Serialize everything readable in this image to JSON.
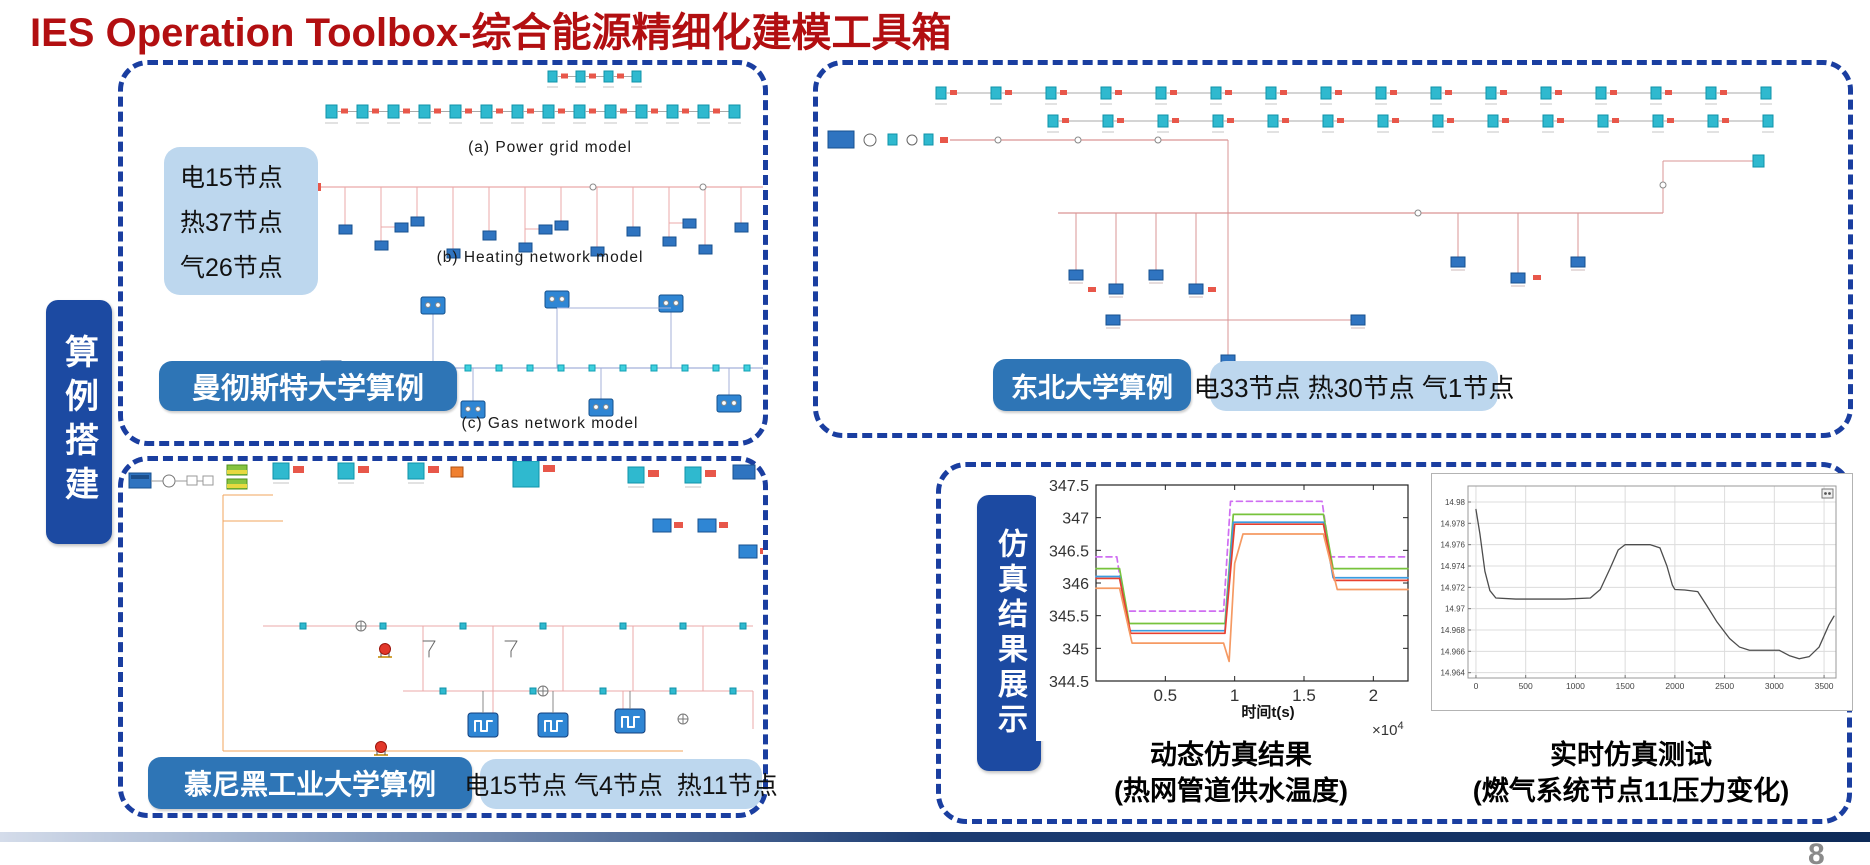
{
  "slide": {
    "title": "IES Operation Toolbox-综合能源精细化建模工具箱",
    "page_number": "8"
  },
  "left_ribbon": {
    "label": "算例搭建"
  },
  "manchester": {
    "nodes": [
      "电15节点",
      "热37节点",
      "气26节点"
    ],
    "captions": {
      "a": "(a) Power grid model",
      "b": "(b) Heating network model",
      "c": "(c) Gas network model"
    },
    "label": "曼彻斯特大学算例"
  },
  "northeastern": {
    "label": "东北大学算例",
    "nodes": "电33节点 热30节点 气1节点"
  },
  "munich": {
    "label": "慕尼黑工业大学算例",
    "nodes": "电15节点 气4节点  热11节点"
  },
  "results": {
    "ribbon": "仿真结果展示",
    "dynamic": {
      "title": "动态仿真结果",
      "subtitle": "(热网管道供水温度)"
    },
    "realtime": {
      "title": "实时仿真测试",
      "subtitle": "(燃气系统节点11压力变化)"
    }
  },
  "colors": {
    "title_red": "#B20F11",
    "dash_blue": "#1A3EA0",
    "ribbon_blue": "#1C4AA2",
    "label_blue": "#2E75B6",
    "light_blue": "#BDD7EE"
  },
  "chart_data": [
    {
      "type": "line",
      "title": "动态仿真结果 (热网管道供水温度)",
      "xlabel": "时间t(s)",
      "x_mult_base": "×10",
      "x_mult_exp": "4",
      "xlim": [
        0,
        2.25
      ],
      "ylim": [
        344.5,
        347.5
      ],
      "xticks": [
        0.5,
        1,
        1.5,
        2
      ],
      "xtick_labels": [
        "0.5",
        "1",
        "1.5",
        "2"
      ],
      "yticks": [
        344.5,
        345,
        345.5,
        346,
        346.5,
        347,
        347.5
      ],
      "ytick_labels": [
        "344.5",
        "345",
        "345.5",
        "346",
        "346.5",
        "347",
        "347.5"
      ],
      "grid": false,
      "legend": null,
      "series": [
        {
          "name": "setpoint-dashed-magenta",
          "color": "#cf6ef2",
          "dash": true,
          "x": [
            0,
            0.15,
            0.21,
            0.92,
            0.97,
            1.63,
            1.69,
            2.25
          ],
          "y": [
            346.4,
            346.4,
            345.57,
            345.57,
            347.25,
            347.25,
            346.4,
            346.4
          ]
        },
        {
          "name": "pipe-green",
          "color": "#77c33c",
          "dash": false,
          "x": [
            0,
            0.17,
            0.24,
            0.93,
            0.99,
            1.64,
            1.71,
            2.25
          ],
          "y": [
            346.22,
            346.22,
            345.38,
            345.38,
            347.05,
            347.05,
            346.22,
            346.22
          ]
        },
        {
          "name": "pipe-blue",
          "color": "#3b9ce0",
          "dash": false,
          "x": [
            0,
            0.17,
            0.24,
            0.93,
            0.99,
            1.64,
            1.71,
            2.25
          ],
          "y": [
            346.1,
            346.1,
            345.27,
            345.27,
            346.93,
            346.93,
            346.08,
            346.08
          ]
        },
        {
          "name": "pipe-red",
          "color": "#e8402f",
          "dash": false,
          "x": [
            0,
            0.17,
            0.25,
            0.93,
            1.0,
            1.64,
            1.72,
            2.25
          ],
          "y": [
            346.07,
            346.07,
            345.23,
            345.23,
            346.9,
            346.9,
            346.04,
            346.04
          ]
        },
        {
          "name": "pipe-orange",
          "color": "#f59a63",
          "dash": false,
          "x": [
            0,
            0.17,
            0.26,
            0.92,
            0.96,
            1.0,
            1.06,
            1.64,
            1.74,
            2.25
          ],
          "y": [
            345.92,
            345.92,
            345.08,
            345.08,
            344.8,
            346.3,
            346.75,
            346.75,
            345.9,
            345.9
          ]
        }
      ]
    },
    {
      "type": "line",
      "title": "实时仿真测试 (燃气系统节点11压力变化)",
      "xlabel": "",
      "xlim": [
        -80,
        3620
      ],
      "ylim": [
        14.9635,
        14.9815
      ],
      "xticks": [
        0,
        500,
        1000,
        1500,
        2000,
        2500,
        3000,
        3500
      ],
      "xtick_labels": [
        "0",
        "500",
        "1000",
        "1500",
        "2000",
        "2500",
        "3000",
        "3500"
      ],
      "yticks": [
        14.964,
        14.966,
        14.968,
        14.97,
        14.972,
        14.974,
        14.976,
        14.978,
        14.98
      ],
      "ytick_labels": [
        "14.964",
        "14.966",
        "14.968",
        "14.97",
        "14.972",
        "14.974",
        "14.976",
        "14.978",
        "14.98"
      ],
      "grid": true,
      "legend": null,
      "series": [
        {
          "name": "node11-pressure",
          "color": "#4d4d4d",
          "dash": false,
          "x": [
            0,
            40,
            90,
            140,
            200,
            400,
            900,
            1150,
            1250,
            1350,
            1430,
            1500,
            1750,
            1850,
            1920,
            1975,
            2000,
            2100,
            2230,
            2320,
            2420,
            2550,
            2650,
            2750,
            2900,
            3050,
            3150,
            3250,
            3350,
            3450,
            3550,
            3600
          ],
          "y": [
            14.9793,
            14.977,
            14.9735,
            14.9717,
            14.971,
            14.9709,
            14.9709,
            14.971,
            14.9718,
            14.9738,
            14.9755,
            14.976,
            14.976,
            14.9757,
            14.974,
            14.9722,
            14.9718,
            14.97175,
            14.9716,
            14.9703,
            14.9688,
            14.9672,
            14.9664,
            14.9661,
            14.9661,
            14.9661,
            14.9656,
            14.9653,
            14.9655,
            14.9664,
            14.9685,
            14.9693
          ]
        }
      ]
    }
  ]
}
